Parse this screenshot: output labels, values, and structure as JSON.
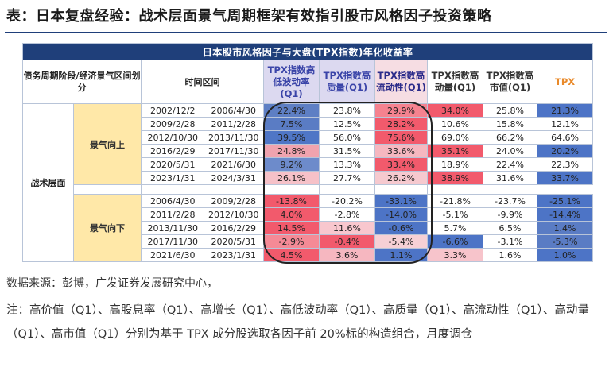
{
  "title": "表：日本复盘经验：战术层面景气周期框架有效指引股市风格因子投资策略",
  "table": {
    "banner": "日本股市风格因子与大盘(TPX指数)年化收益率",
    "headers": {
      "phase": "债务周期阶段/经济景气区间划分",
      "period": "时间区间",
      "f1": "TPX指数高低波动率(Q1)",
      "f2": "TPX指数高质量(Q1)",
      "f3": "TPX指数高流动性(Q1)",
      "f4": "TPX指数高动量(Q1)",
      "f5": "TPX指数高市值(Q1)",
      "f6": "TPX"
    },
    "level_label": "战术层面",
    "groups": [
      {
        "label": "景气向上",
        "rows": [
          {
            "start": "2002/12/2",
            "end": "2006/4/30",
            "v": [
              "22.4%",
              "23.8%",
              "29.9%",
              "34.0%",
              "25.8%",
              "21.3%"
            ]
          },
          {
            "start": "2009/2/28",
            "end": "2011/2/28",
            "v": [
              "7.5%",
              "12.5%",
              "28.2%",
              "10.6%",
              "15.8%",
              "12.1%"
            ]
          },
          {
            "start": "2012/10/30",
            "end": "2013/11/30",
            "v": [
              "39.5%",
              "56.0%",
              "75.6%",
              "69.0%",
              "66.2%",
              "64.6%"
            ]
          },
          {
            "start": "2016/2/29",
            "end": "2017/11/30",
            "v": [
              "24.8%",
              "31.5%",
              "33.6%",
              "35.1%",
              "24.0%",
              "20.2%"
            ]
          },
          {
            "start": "2020/5/31",
            "end": "2021/6/30",
            "v": [
              "9.2%",
              "13.3%",
              "33.4%",
              "18.9%",
              "22.4%",
              "22.3%"
            ]
          },
          {
            "start": "2023/1/31",
            "end": "2024/3/31",
            "v": [
              "26.1%",
              "27.7%",
              "26.2%",
              "38.9%",
              "31.6%",
              "33.7%"
            ]
          }
        ]
      },
      {
        "label": "景气向下",
        "rows": [
          {
            "start": "2006/4/30",
            "end": "2009/2/28",
            "v": [
              "-13.8%",
              "-20.2%",
              "-33.1%",
              "-21.8%",
              "-23.7%",
              "-25.1%"
            ]
          },
          {
            "start": "2011/2/28",
            "end": "2012/10/30",
            "v": [
              "4.0%",
              "-2.8%",
              "-14.0%",
              "-5.1%",
              "-9.9%",
              "-14.4%"
            ]
          },
          {
            "start": "2013/11/30",
            "end": "2016/2/29",
            "v": [
              "14.5%",
              "11.6%",
              "-0.6%",
              "5.7%",
              "6.5%",
              "1.4%"
            ]
          },
          {
            "start": "2017/11/30",
            "end": "2020/5/31",
            "v": [
              "-2.9%",
              "-0.4%",
              "-5.4%",
              "-6.6%",
              "-3.1%",
              "-5.3%"
            ]
          },
          {
            "start": "2021/6/30",
            "end": "2023/1/31",
            "v": [
              "4.5%",
              "3.6%",
              "1.1%",
              "3.3%",
              "1.6%",
              "1.0%"
            ]
          }
        ]
      }
    ],
    "cell_colors": [
      [
        "#5e7fc4",
        "#ffffff",
        "#f5828f",
        "#f25a6c",
        "#ffffff",
        "#4d74c6"
      ],
      [
        "#5a7cc4",
        "#ffffff",
        "#f25a6c",
        "#ffffff",
        "#ffffff",
        "#ffffff"
      ],
      [
        "#4f76c6",
        "#ffffff",
        "#f25a6c",
        "#ffffff",
        "#ffffff",
        "#ffffff"
      ],
      [
        "#f0a3ae",
        "#ffffff",
        "#f6b7c0",
        "#f25a6c",
        "#ffffff",
        "#4d74c6"
      ],
      [
        "#6d8bcb",
        "#ffffff",
        "#f25a6c",
        "#ffffff",
        "#ffffff",
        "#ffffff"
      ],
      [
        "#f6c1c8",
        "#ffffff",
        "#f6c9cf",
        "#f25a6c",
        "#ffffff",
        "#4d74c6"
      ],
      [
        "#f25a6c",
        "#ffffff",
        "#4d74c6",
        "#ffffff",
        "#ffffff",
        "#4d74c6"
      ],
      [
        "#f25a6c",
        "#ffffff",
        "#4d74c6",
        "#ffffff",
        "#ffffff",
        "#4d74c6"
      ],
      [
        "#f25a6c",
        "#f8c7ce",
        "#4d74c6",
        "#ffffff",
        "#ffffff",
        "#5a7cc4"
      ],
      [
        "#f58a96",
        "#f25a6c",
        "#f6d0d5",
        "#4d74c6",
        "#ffffff",
        "#5a7cc4"
      ],
      [
        "#f25a6c",
        "#f6b7c0",
        "#4d74c6",
        "#f7c4cb",
        "#ffffff",
        "#4d74c6"
      ]
    ]
  },
  "source": "数据来源：彭博，广发证券发展研究中心，",
  "note": "注：高价值（Q1）、高股息率（Q1）、高增长（Q1）、高低波动率（Q1）、高质量（Q1）、高流动性（Q1）、高动量（Q1）、高市值（Q1）分别为基于 TPX 成分股选取各因子前 20%标的构造组合，月度调仓"
}
